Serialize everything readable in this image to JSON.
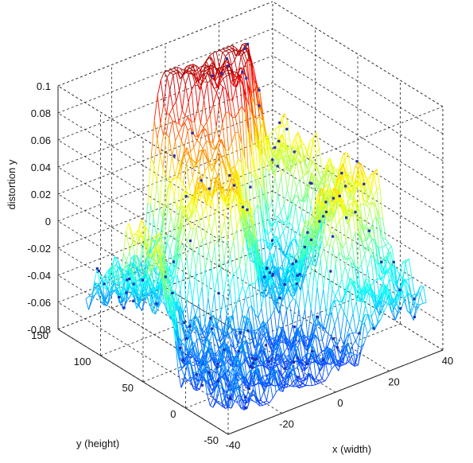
{
  "chart_data": {
    "type": "surface",
    "zlabel": "distortion y",
    "xlabel": "x (width)",
    "ylabel": "y  (height)",
    "xlim": [
      -40,
      40
    ],
    "ylim": [
      -50,
      150
    ],
    "zlim": [
      -0.08,
      0.1
    ],
    "x_ticks": [
      "-40",
      "-20",
      "0",
      "20",
      "40"
    ],
    "y_ticks": [
      "-50",
      "0",
      "50",
      "100",
      "150"
    ],
    "z_ticks": [
      "-0.08",
      "-0.06",
      "-0.04",
      "-0.02",
      "0",
      "0.02",
      "0.04",
      "0.06",
      "0.08",
      "0.1"
    ],
    "grid": true,
    "colormap": "jet",
    "marker_color": "#1f2fb0",
    "surface_profile": [
      {
        "x": -40,
        "y": 70,
        "z": 0.015
      },
      {
        "x": -25,
        "y": 100,
        "z": -0.045
      },
      {
        "x": -20,
        "y": 30,
        "z": -0.065
      },
      {
        "x": -5,
        "y": 80,
        "z": 0.03
      },
      {
        "x": 0,
        "y": -10,
        "z": -0.07
      },
      {
        "x": 5,
        "y": 120,
        "z": 0.09
      },
      {
        "x": 15,
        "y": 60,
        "z": -0.05
      },
      {
        "x": 25,
        "y": 20,
        "z": 0.02
      },
      {
        "x": 30,
        "y": -20,
        "z": -0.04
      },
      {
        "x": 40,
        "y": 90,
        "z": 0.01
      }
    ]
  }
}
